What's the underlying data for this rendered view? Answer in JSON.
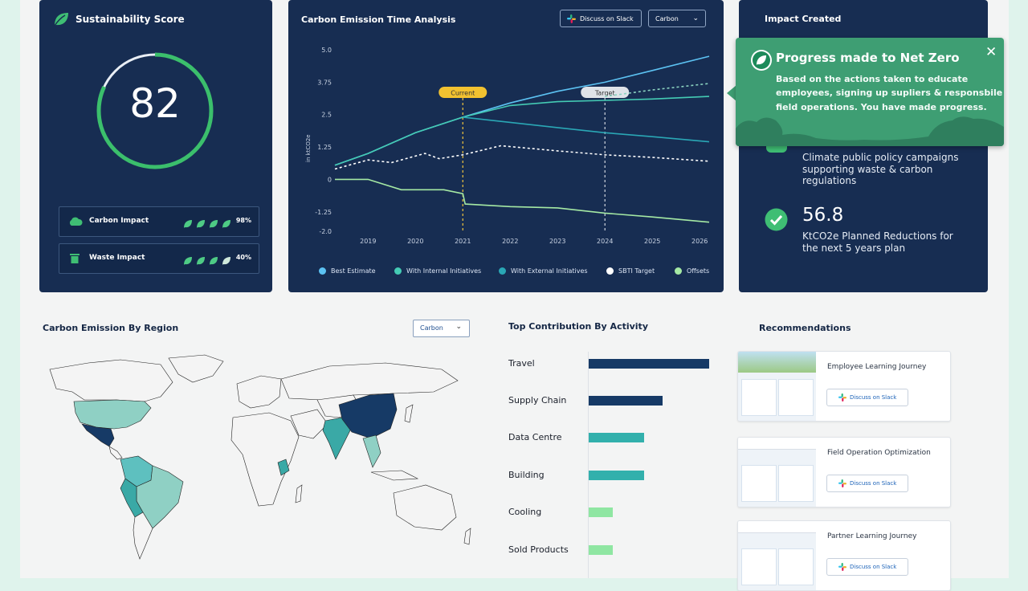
{
  "score_card": {
    "title": "Sustainability Score",
    "score": "82",
    "score_fraction": 0.82,
    "rows": [
      {
        "label": "Carbon Impact",
        "percent": "98%",
        "leaves_filled": 4
      },
      {
        "label": "Waste Impact",
        "percent": "40%",
        "leaves_filled": 3.5
      }
    ]
  },
  "time_analysis": {
    "title": "Carbon Emission Time Analysis",
    "slack_button": "Discuss on Slack",
    "select_value": "Carbon"
  },
  "chart_data": {
    "type": "line",
    "ylabel": "in ktCO2e",
    "ylim": [
      -2.0,
      5.0
    ],
    "y_ticks": [
      "5.0",
      "3.75",
      "2.5",
      "1.25",
      "0",
      "-1.25",
      "-2.0"
    ],
    "y_tick_values": [
      5.0,
      3.75,
      2.5,
      1.25,
      0,
      -1.25,
      -2.0
    ],
    "x": [
      2019,
      2020,
      2021,
      2022,
      2023,
      2024,
      2025,
      2026
    ],
    "x_labels": [
      "2019",
      "2020",
      "2021",
      "2022",
      "2023",
      "2024",
      "2025",
      "2026"
    ],
    "xlim": [
      2018.3,
      2026.2
    ],
    "markers": [
      {
        "label": "Current",
        "x": 2021
      },
      {
        "label": "Target",
        "x": 2024
      }
    ],
    "series": [
      {
        "name": "Best Estimate",
        "color": "#5cc2f2",
        "dashed": false,
        "points": [
          [
            2018.3,
            0.55
          ],
          [
            2019,
            1.0
          ],
          [
            2020,
            1.8
          ],
          [
            2021,
            2.4
          ],
          [
            2022,
            2.95
          ],
          [
            2023,
            3.4
          ],
          [
            2024,
            3.75
          ],
          [
            2025,
            4.2
          ],
          [
            2026.2,
            4.75
          ]
        ]
      },
      {
        "name": "With Internal Initiatives",
        "color": "#44cbb4",
        "dashed": false,
        "points": [
          [
            2018.3,
            0.55
          ],
          [
            2019,
            1.0
          ],
          [
            2020,
            1.8
          ],
          [
            2021,
            2.4
          ],
          [
            2022,
            2.85
          ],
          [
            2023,
            3.0
          ],
          [
            2024,
            3.05
          ],
          [
            2025,
            3.1
          ],
          [
            2026.2,
            3.2
          ]
        ]
      },
      {
        "name": "With External Initiatives",
        "color": "#2aa7b5",
        "dashed": false,
        "points": [
          [
            2021,
            2.4
          ],
          [
            2022,
            2.2
          ],
          [
            2023,
            2.0
          ],
          [
            2024,
            1.8
          ],
          [
            2025,
            1.65
          ],
          [
            2026.2,
            1.45
          ]
        ]
      },
      {
        "name": "SBTI Target",
        "color": "#ffffff",
        "dashed": true,
        "points": [
          [
            2018.3,
            0.4
          ],
          [
            2019,
            0.75
          ],
          [
            2019.5,
            0.65
          ],
          [
            2020.2,
            1.0
          ],
          [
            2020.5,
            0.8
          ],
          [
            2021,
            0.95
          ],
          [
            2021.8,
            1.3
          ],
          [
            2023,
            1.1
          ],
          [
            2024,
            0.95
          ],
          [
            2025,
            0.85
          ],
          [
            2026.2,
            0.7
          ]
        ]
      },
      {
        "name": "Offsets",
        "color": "#a5e9a4",
        "dashed": false,
        "points": [
          [
            2018.3,
            0
          ],
          [
            2019,
            0
          ],
          [
            2019.7,
            -0.4
          ],
          [
            2020.6,
            -0.4
          ],
          [
            2021,
            -0.55
          ],
          [
            2021.05,
            -0.95
          ],
          [
            2022,
            -1.05
          ],
          [
            2023,
            -1.1
          ],
          [
            2024,
            -1.3
          ],
          [
            2025,
            -1.45
          ],
          [
            2026.2,
            -1.65
          ]
        ]
      },
      {
        "name": "SBTI dashed extension",
        "color": "#8ad2c0",
        "dashed": true,
        "hidden_legend": true,
        "points": [
          [
            2024,
            3.2
          ],
          [
            2025,
            3.45
          ],
          [
            2026.2,
            3.7
          ]
        ]
      }
    ]
  },
  "impact": {
    "title": "Impact Created",
    "policy_text_1": "Climate public policy campaigns",
    "policy_text_2": "supporting waste & carbon regulations",
    "metric_value": "56.8",
    "metric_text_1": "KtCO2e Planned Reductions for",
    "metric_text_2": "the next 5 years plan"
  },
  "tooltip": {
    "title": "Progress made to Net Zero",
    "line1": "Based on the actions taken to educate",
    "line2": "employees, signing up supliers & responsbile",
    "line3": "field operations. You have made progress."
  },
  "region": {
    "title": "Carbon Emission By Region",
    "select_value": "Carbon"
  },
  "activity": {
    "title": "Top Contribution By Activity",
    "items": [
      {
        "label": "Travel",
        "value": 100,
        "color": "#163a66"
      },
      {
        "label": "Supply Chain",
        "value": 61,
        "color": "#163a66"
      },
      {
        "label": "Data Centre",
        "value": 46,
        "color": "#32b0ac"
      },
      {
        "label": "Building",
        "value": 46,
        "color": "#32b0ac"
      },
      {
        "label": "Cooling",
        "value": 20,
        "color": "#8fe6a2"
      },
      {
        "label": "Sold Products",
        "value": 20,
        "color": "#8fe6a2"
      }
    ]
  },
  "recommendations": {
    "title": "Recommendations",
    "items": [
      {
        "title": "Employee Learning Journey",
        "button": "Discuss on Slack"
      },
      {
        "title": "Field Operation Optimization",
        "button": "Discuss on Slack"
      },
      {
        "title": "Partner Learning Journey",
        "button": "Discuss on Slack"
      }
    ]
  }
}
